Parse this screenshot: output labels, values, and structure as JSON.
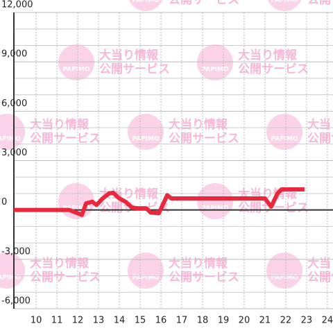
{
  "chart_data": {
    "type": "line",
    "watermark": {
      "logo": "PAPIMO",
      "line1": "大当り情報",
      "line2": "公開サービス"
    },
    "x": [
      8.93,
      11.6,
      12.2,
      12.4,
      12.7,
      12.9,
      13.2,
      13.5,
      13.7,
      14.0,
      14.3,
      14.6,
      14.9,
      15.3,
      15.5,
      15.9,
      16.3,
      16.5,
      21.0,
      21.3,
      21.6,
      21.8,
      22.9
    ],
    "series": [
      {
        "color": "#e8283c",
        "values": [
          0,
          0,
          -300,
          400,
          500,
          300,
          700,
          1000,
          1050,
          700,
          500,
          150,
          100,
          100,
          -150,
          -200,
          900,
          700,
          700,
          200,
          1000,
          1250,
          1250
        ]
      }
    ],
    "xlim": [
      8.93,
      24.27
    ],
    "xticks": [
      10,
      11,
      12,
      13,
      14,
      15,
      16,
      17,
      18,
      19,
      20,
      21,
      22,
      23,
      24
    ],
    "ylim": [
      -6000,
      12000
    ],
    "yticks": [
      {
        "value": -6000,
        "label": "-6,000"
      },
      {
        "value": -3000,
        "label": "-3,000"
      },
      0,
      {
        "value": 3000,
        "label": "3,000"
      },
      {
        "value": 6000,
        "label": "6,000"
      },
      {
        "value": 9000,
        "label": "9,000"
      },
      {
        "value": 12000,
        "label": "12,000"
      }
    ],
    "grid": true
  }
}
